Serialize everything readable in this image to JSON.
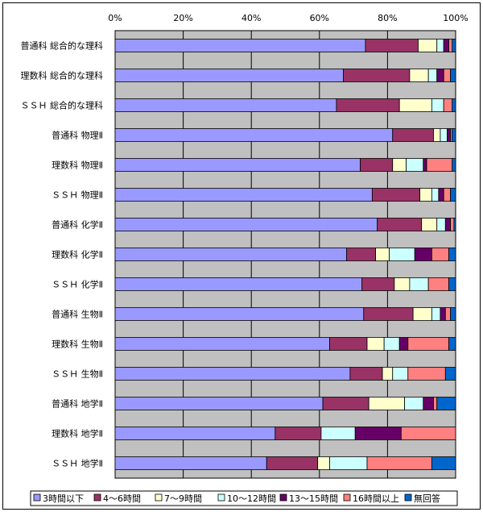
{
  "chart_data": {
    "type": "bar",
    "orientation": "horizontal",
    "stacked": "percent",
    "categories": [
      "普通科 総合的な理科",
      "理数科 総合的な理科",
      "ＳＳＨ 総合的な理科",
      "普通科 物理Ⅱ",
      "理数科 物理Ⅱ",
      "ＳＳＨ 物理Ⅱ",
      "普通科 化学Ⅱ",
      "理数科 化学Ⅱ",
      "ＳＳＨ 化学Ⅱ",
      "普通科 生物Ⅱ",
      "理数科 生物Ⅱ",
      "ＳＳＨ 生物Ⅱ",
      "普通科 地学Ⅱ",
      "理数科 地学Ⅱ",
      "ＳＳＨ 地学Ⅱ"
    ],
    "series": [
      {
        "name": "3時間以下",
        "color": "#9999ff",
        "values": [
          73.5,
          67,
          65,
          81.5,
          72,
          75.5,
          77,
          68,
          72.5,
          73,
          63,
          69,
          61,
          47,
          44.5
        ]
      },
      {
        "name": "4～6時間",
        "color": "#993366",
        "values": [
          15.5,
          19.5,
          18.5,
          12,
          9.5,
          14,
          13,
          8.5,
          9.5,
          14.5,
          11,
          9.5,
          13.5,
          13.5,
          15
        ]
      },
      {
        "name": "7～9時間",
        "color": "#ffffcc",
        "values": [
          5.5,
          5.5,
          9.5,
          2,
          4,
          3.5,
          4.5,
          4,
          4.5,
          5.5,
          5,
          3,
          10.5,
          0,
          3.5
        ]
      },
      {
        "name": "10～12時間",
        "color": "#ccffff",
        "values": [
          2,
          2.5,
          3.5,
          2,
          5,
          2,
          2.5,
          7.5,
          5.5,
          2.5,
          4.5,
          4.5,
          5.5,
          10,
          11
        ]
      },
      {
        "name": "13～15時間",
        "color": "#660066",
        "values": [
          1.5,
          2,
          0,
          1,
          1,
          1.5,
          1.5,
          5,
          0,
          1.5,
          2.5,
          0,
          3,
          13.5,
          0
        ]
      },
      {
        "name": "16時間以上",
        "color": "#ff8080",
        "values": [
          1,
          2,
          2.5,
          0.5,
          7.5,
          2,
          1,
          5,
          6,
          1.5,
          12,
          11,
          1,
          16,
          19
        ]
      },
      {
        "name": "無回答",
        "color": "#0066cc",
        "values": [
          1,
          1.5,
          1,
          1,
          1,
          1.5,
          0.5,
          2,
          2,
          1.5,
          2,
          3,
          5.5,
          0,
          7
        ]
      }
    ],
    "x_ticks": [
      "0%",
      "20%",
      "40%",
      "60%",
      "80%",
      "100%"
    ],
    "xlim": [
      0,
      100
    ],
    "grid": true,
    "legend_position": "bottom",
    "colors": {
      "plot_background": "#c0c0c0",
      "gridline": "#000000"
    }
  }
}
